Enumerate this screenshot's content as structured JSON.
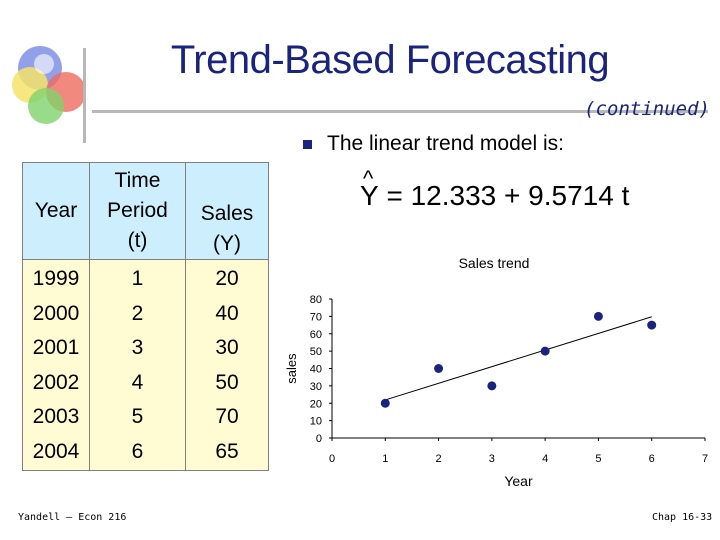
{
  "slide": {
    "title": "Trend-Based Forecasting",
    "subtitle": "(continued)",
    "bullet_text": "The linear trend model is:",
    "formula": {
      "y": "Y",
      "eq": "= 12.333 + 9.5714 t"
    },
    "footer_left": "Yandell – Econ 216",
    "footer_right": "Chap 16-33"
  },
  "table": {
    "headers": [
      [
        "Year"
      ],
      [
        "Time",
        "Period",
        "(t)"
      ],
      [
        "Sales",
        "(Y)"
      ]
    ],
    "years": [
      "1999",
      "2000",
      "2001",
      "2002",
      "2003",
      "2004"
    ],
    "periods": [
      "1",
      "2",
      "3",
      "4",
      "5",
      "6"
    ],
    "sales": [
      "20",
      "40",
      "30",
      "50",
      "70",
      "65"
    ]
  },
  "chart_data": {
    "type": "scatter",
    "title": "Sales trend",
    "xlabel": "Year",
    "ylabel": "sales",
    "xlim": [
      0,
      7
    ],
    "ylim": [
      0,
      80
    ],
    "xticks": [
      0,
      1,
      2,
      3,
      4,
      5,
      6,
      7
    ],
    "yticks": [
      0,
      10,
      20,
      30,
      40,
      50,
      60,
      70,
      80
    ],
    "series": [
      {
        "x": [
          1,
          2,
          3,
          4,
          5,
          6
        ],
        "y": [
          20,
          40,
          30,
          50,
          70,
          65
        ]
      }
    ],
    "trendline": {
      "intercept": 12.333,
      "slope": 9.5714,
      "x_range": [
        1,
        6
      ]
    },
    "colors": {
      "marker": "#1a237e",
      "axis": "#000000"
    }
  }
}
